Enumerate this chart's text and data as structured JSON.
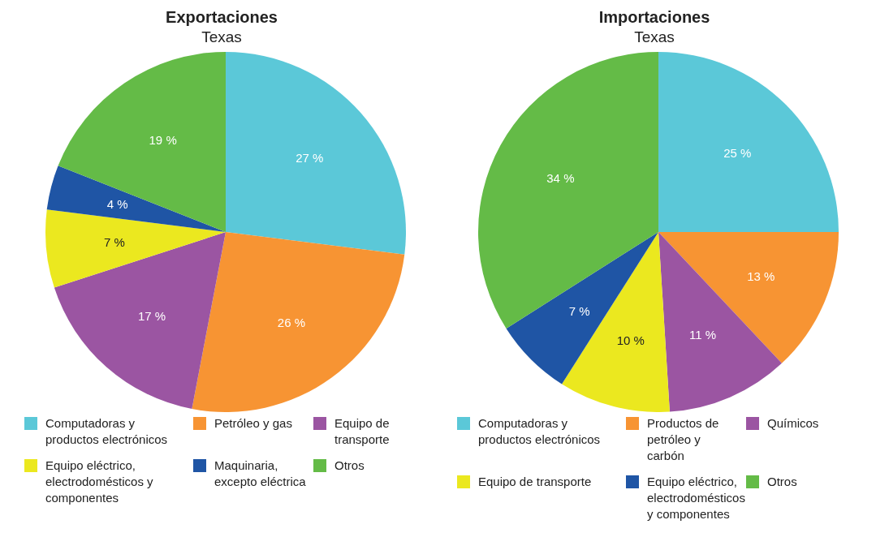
{
  "chart_data": [
    {
      "type": "pie",
      "title": "Exportaciones",
      "subtitle": "Texas",
      "categories": [
        "Computadoras y productos  electrónicos",
        "Petróleo y gas",
        "Equipo de transporte",
        "Equipo eléctrico, electrodomésticos y componentes",
        "Maquinaria, excepto eléctrica",
        "Otros"
      ],
      "values": [
        27,
        26,
        17,
        7,
        4,
        19
      ],
      "colors": [
        "#5bc8d8",
        "#f79433",
        "#9b55a2",
        "#ebe81f",
        "#1f55a5",
        "#64bb47"
      ],
      "value_labels": [
        "27 %",
        "26 %",
        "17 %",
        "7 %",
        "4 %",
        "19 %"
      ],
      "legend": "bottom"
    },
    {
      "type": "pie",
      "title": "Importaciones",
      "subtitle": "Texas",
      "categories": [
        "Computadoras y productos electrónicos",
        "Productos de petróleo y carbón",
        "Químicos",
        "Equipo de transporte",
        "Equipo eléctrico, electrodomésticos y componentes",
        "Otros"
      ],
      "values": [
        25,
        13,
        11,
        10,
        7,
        34
      ],
      "colors": [
        "#5bc8d8",
        "#f79433",
        "#9b55a2",
        "#ebe81f",
        "#1f55a5",
        "#64bb47"
      ],
      "value_labels": [
        "25 %",
        "13 %",
        "11 %",
        "10 %",
        "7 %",
        "34 %"
      ],
      "legend": "bottom"
    }
  ]
}
